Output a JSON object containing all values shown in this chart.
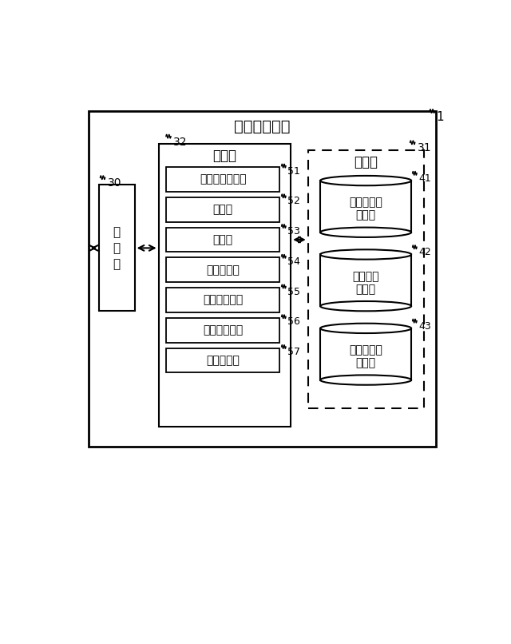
{
  "title": "情報提供装置",
  "label_1": "1",
  "comm_box_label": "通\n信\n部",
  "comm_box_num": "30",
  "ctrl_box_label": "制御部",
  "ctrl_box_num": "32",
  "mem_box_label": "記憶部",
  "mem_box_num": "31",
  "ctrl_modules": [
    {
      "label": "広告情報取得部",
      "num": "51"
    },
    {
      "label": "特定部",
      "num": "52"
    },
    {
      "label": "取得部",
      "num": "53"
    },
    {
      "label": "価値判定部",
      "num": "54"
    },
    {
      "label": "受容度判定部",
      "num": "55"
    },
    {
      "label": "配信先決定部",
      "num": "56"
    },
    {
      "label": "情報提供部",
      "num": "57"
    }
  ],
  "mem_modules": [
    {
      "label": "ユーザ情報\n記憶部",
      "num": "41"
    },
    {
      "label": "判定情報\n記憶部",
      "num": "42"
    },
    {
      "label": "コンテンツ\n記憶部",
      "num": "43"
    }
  ],
  "bg_color": "#ffffff",
  "text_color": "#000000"
}
